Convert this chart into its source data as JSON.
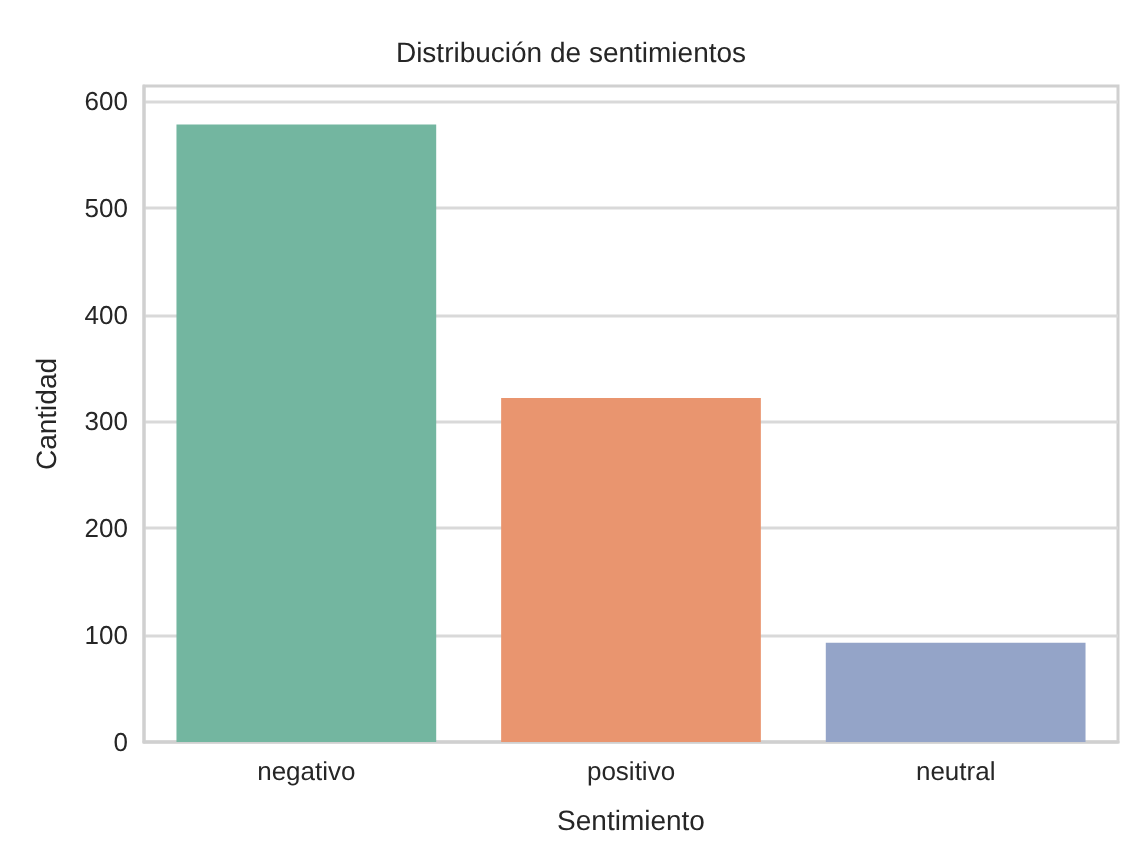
{
  "chart_data": {
    "type": "bar",
    "title": "Distribución de sentimientos",
    "xlabel": "Sentimiento",
    "ylabel": "Cantidad",
    "categories": [
      "negativo",
      "positivo",
      "neutral"
    ],
    "values": [
      578,
      322,
      93
    ],
    "colors": [
      "#73b6a0",
      "#e9956f",
      "#94a4c8"
    ],
    "ylim": [
      0,
      614
    ],
    "yticks": [
      0,
      100,
      200,
      300,
      400,
      500,
      600
    ],
    "grid": "y"
  }
}
